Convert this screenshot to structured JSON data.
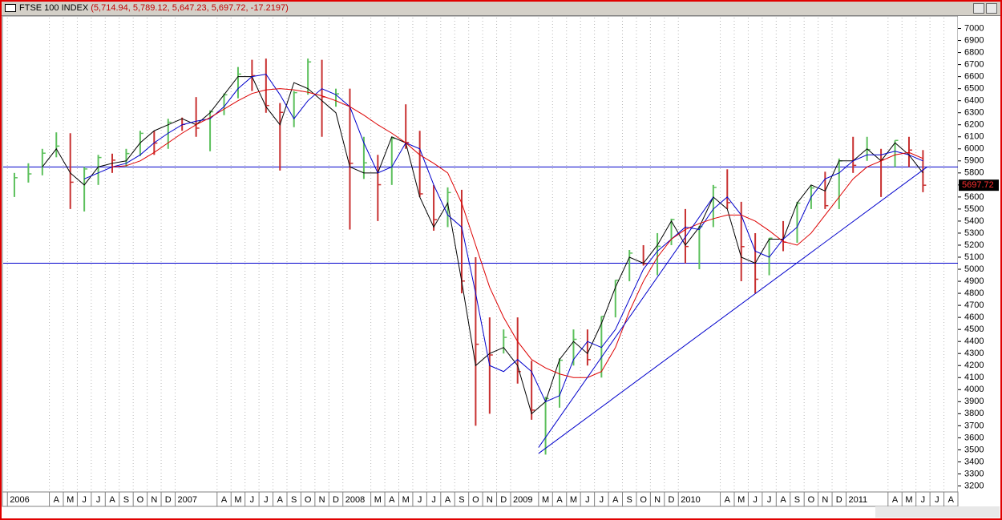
{
  "chart_data": {
    "type": "ohlc",
    "title": "FTSE 100 INDEX",
    "title_values": "(5,714.94, 5,789.12, 5,647.23, 5,697.72, -17.2197)",
    "last_label": "5697.72",
    "x": [
      0,
      1,
      2,
      3,
      4,
      5,
      6,
      7,
      8,
      9,
      10,
      11,
      12,
      13,
      14,
      15,
      16,
      17,
      18,
      19,
      20,
      21,
      22,
      23,
      24,
      25,
      26,
      27,
      28,
      29,
      30,
      31,
      32,
      33,
      34,
      35,
      36,
      37,
      38,
      39,
      40,
      41,
      42,
      43,
      44,
      45,
      46,
      47,
      48,
      49,
      50,
      51,
      52,
      53,
      54,
      55,
      56,
      57,
      58,
      59,
      60,
      61,
      62,
      63,
      64,
      65
    ],
    "high": [
      5800,
      5880,
      6000,
      6137,
      6130,
      5850,
      5950,
      5960,
      6000,
      6150,
      6150,
      6250,
      6260,
      6430,
      6320,
      6460,
      6680,
      6740,
      6750,
      6380,
      6480,
      6750,
      6740,
      6500,
      6500,
      6100,
      5950,
      6100,
      6370,
      6150,
      5700,
      5680,
      5660,
      5100,
      4600,
      4500,
      4600,
      4240,
      3940,
      4260,
      4500,
      4500,
      4610,
      4910,
      5160,
      5200,
      5300,
      5420,
      5500,
      5360,
      5700,
      5830,
      5560,
      5300,
      5260,
      5400,
      5560,
      5700,
      5810,
      5920,
      6100,
      6100,
      6000,
      6070,
      6100,
      5990
    ],
    "low": [
      5600,
      5720,
      5780,
      5930,
      5500,
      5480,
      5700,
      5800,
      5850,
      5940,
      5950,
      6000,
      6150,
      6100,
      5980,
      6280,
      6420,
      6480,
      6300,
      5820,
      6180,
      6450,
      6100,
      6350,
      5330,
      5750,
      5400,
      5700,
      6000,
      5600,
      5320,
      5350,
      4800,
      3700,
      3800,
      4300,
      4050,
      3750,
      3460,
      3850,
      4200,
      4200,
      4100,
      4600,
      4900,
      5030,
      4950,
      5200,
      5050,
      5000,
      5350,
      5500,
      4900,
      4800,
      4950,
      5150,
      5220,
      5500,
      5500,
      5500,
      5800,
      5900,
      5600,
      5850,
      5850,
      5640
    ],
    "close": [
      5760,
      5792,
      5964,
      6023,
      5723,
      5833,
      5928,
      5906,
      5961,
      6129,
      6048,
      6221,
      6203,
      6172,
      6308,
      6449,
      6621,
      6608,
      6360,
      6303,
      6467,
      6722,
      6432,
      6457,
      5880,
      5884,
      5702,
      6087,
      6053,
      5626,
      5412,
      5637,
      4902,
      4377,
      4288,
      4434,
      4150,
      3830,
      3926,
      4244,
      4418,
      4249,
      4608,
      4909,
      5134,
      5045,
      5191,
      5413,
      5189,
      5355,
      5680,
      5553,
      5188,
      4917,
      5258,
      5225,
      5549,
      5675,
      5528,
      5900,
      5863,
      5994,
      5909,
      6070,
      5990,
      5698
    ],
    "up_color": "#5cc05c",
    "down_color": "#c83030",
    "series": [
      {
        "color": "#000000",
        "values": [
          null,
          null,
          5850,
          6000,
          5800,
          5700,
          5850,
          5880,
          5900,
          6050,
          6150,
          6200,
          6250,
          6200,
          6300,
          6450,
          6600,
          6600,
          6350,
          6200,
          6550,
          6500,
          6400,
          6300,
          5850,
          5800,
          5800,
          6100,
          6050,
          5600,
          5350,
          5550,
          4900,
          4200,
          4300,
          4350,
          4200,
          3800,
          3900,
          4250,
          4400,
          4300,
          4550,
          4850,
          5100,
          5050,
          5200,
          5400,
          5200,
          5350,
          5600,
          5500,
          5100,
          5050,
          5250,
          5250,
          5550,
          5700,
          5650,
          5900,
          5900,
          6000,
          5900,
          6050,
          5950,
          5800
        ]
      },
      {
        "color": "#0000cc",
        "values": [
          null,
          null,
          null,
          null,
          null,
          5750,
          5800,
          5850,
          5880,
          5950,
          6050,
          6130,
          6200,
          6230,
          6250,
          6350,
          6500,
          6600,
          6620,
          6450,
          6250,
          6400,
          6500,
          6450,
          6350,
          6050,
          5800,
          5850,
          6050,
          6000,
          5700,
          5450,
          5350,
          4800,
          4200,
          4150,
          4250,
          4150,
          3900,
          3950,
          4250,
          4400,
          4350,
          4500,
          4750,
          5000,
          5150,
          5250,
          5350,
          5330,
          5500,
          5600,
          5450,
          5150,
          5100,
          5250,
          5350,
          5600,
          5750,
          5800,
          5900,
          5950,
          5950,
          5980,
          5950,
          5900
        ]
      },
      {
        "color": "#dd0000",
        "values": [
          null,
          null,
          null,
          null,
          null,
          null,
          null,
          5850,
          5860,
          5900,
          5970,
          6050,
          6130,
          6200,
          6260,
          6330,
          6400,
          6460,
          6490,
          6500,
          6490,
          6470,
          6440,
          6400,
          6350,
          6280,
          6200,
          6130,
          6050,
          5950,
          5880,
          5800,
          5550,
          5200,
          4850,
          4600,
          4400,
          4250,
          4180,
          4130,
          4100,
          4100,
          4150,
          4350,
          4650,
          4900,
          5100,
          5250,
          5330,
          5380,
          5420,
          5450,
          5450,
          5400,
          5320,
          5230,
          5200,
          5300,
          5450,
          5600,
          5750,
          5850,
          5900,
          5950,
          5970,
          5920
        ]
      }
    ],
    "hlines": [
      5850,
      5050
    ],
    "line_color": "#0000cc",
    "trendlines": [
      {
        "x": [
          38,
          65.8
        ],
        "y": [
          3470,
          5850
        ]
      },
      {
        "x": [
          38,
          50.5
        ],
        "y": [
          3520,
          5600
        ]
      }
    ],
    "xlim": [
      -0.3,
      68
    ],
    "ylim": [
      3150,
      7090
    ],
    "yticks": [
      3200,
      3300,
      3400,
      3500,
      3600,
      3700,
      3800,
      3900,
      4000,
      4100,
      4200,
      4300,
      4400,
      4500,
      4600,
      4700,
      4800,
      4900,
      5000,
      5100,
      5200,
      5300,
      5400,
      5500,
      5600,
      5700,
      5800,
      5900,
      6000,
      6100,
      6200,
      6300,
      6400,
      6500,
      6600,
      6700,
      6800,
      6900,
      7000
    ],
    "xticks": [
      {
        "value": 0,
        "label": "2006"
      },
      {
        "value": 3,
        "label": "A"
      },
      {
        "value": 4,
        "label": "M"
      },
      {
        "value": 5,
        "label": "J"
      },
      {
        "value": 6,
        "label": "J"
      },
      {
        "value": 7,
        "label": "A"
      },
      {
        "value": 8,
        "label": "S"
      },
      {
        "value": 9,
        "label": "O"
      },
      {
        "value": 10,
        "label": "N"
      },
      {
        "value": 11,
        "label": "D"
      },
      {
        "value": 12,
        "label": "2007"
      },
      {
        "value": 15,
        "label": "A"
      },
      {
        "value": 16,
        "label": "M"
      },
      {
        "value": 17,
        "label": "J"
      },
      {
        "value": 18,
        "label": "J"
      },
      {
        "value": 19,
        "label": "A"
      },
      {
        "value": 20,
        "label": "S"
      },
      {
        "value": 21,
        "label": "O"
      },
      {
        "value": 22,
        "label": "N"
      },
      {
        "value": 23,
        "label": "D"
      },
      {
        "value": 24,
        "label": "2008"
      },
      {
        "value": 26,
        "label": "M"
      },
      {
        "value": 27,
        "label": "A"
      },
      {
        "value": 28,
        "label": "M"
      },
      {
        "value": 29,
        "label": "J"
      },
      {
        "value": 30,
        "label": "J"
      },
      {
        "value": 31,
        "label": "A"
      },
      {
        "value": 32,
        "label": "S"
      },
      {
        "value": 33,
        "label": "O"
      },
      {
        "value": 34,
        "label": "N"
      },
      {
        "value": 35,
        "label": "D"
      },
      {
        "value": 36,
        "label": "2009"
      },
      {
        "value": 38,
        "label": "M"
      },
      {
        "value": 39,
        "label": "A"
      },
      {
        "value": 40,
        "label": "M"
      },
      {
        "value": 41,
        "label": "J"
      },
      {
        "value": 42,
        "label": "J"
      },
      {
        "value": 43,
        "label": "A"
      },
      {
        "value": 44,
        "label": "S"
      },
      {
        "value": 45,
        "label": "O"
      },
      {
        "value": 46,
        "label": "N"
      },
      {
        "value": 47,
        "label": "D"
      },
      {
        "value": 48,
        "label": "2010"
      },
      {
        "value": 51,
        "label": "A"
      },
      {
        "value": 52,
        "label": "M"
      },
      {
        "value": 53,
        "label": "J"
      },
      {
        "value": 54,
        "label": "J"
      },
      {
        "value": 55,
        "label": "A"
      },
      {
        "value": 56,
        "label": "S"
      },
      {
        "value": 57,
        "label": "O"
      },
      {
        "value": 58,
        "label": "N"
      },
      {
        "value": 59,
        "label": "D"
      },
      {
        "value": 60,
        "label": "2011"
      },
      {
        "value": 63,
        "label": "A"
      },
      {
        "value": 64,
        "label": "M"
      },
      {
        "value": 65,
        "label": "J"
      },
      {
        "value": 66,
        "label": "J"
      },
      {
        "value": 67,
        "label": "A"
      }
    ],
    "grid": true
  }
}
